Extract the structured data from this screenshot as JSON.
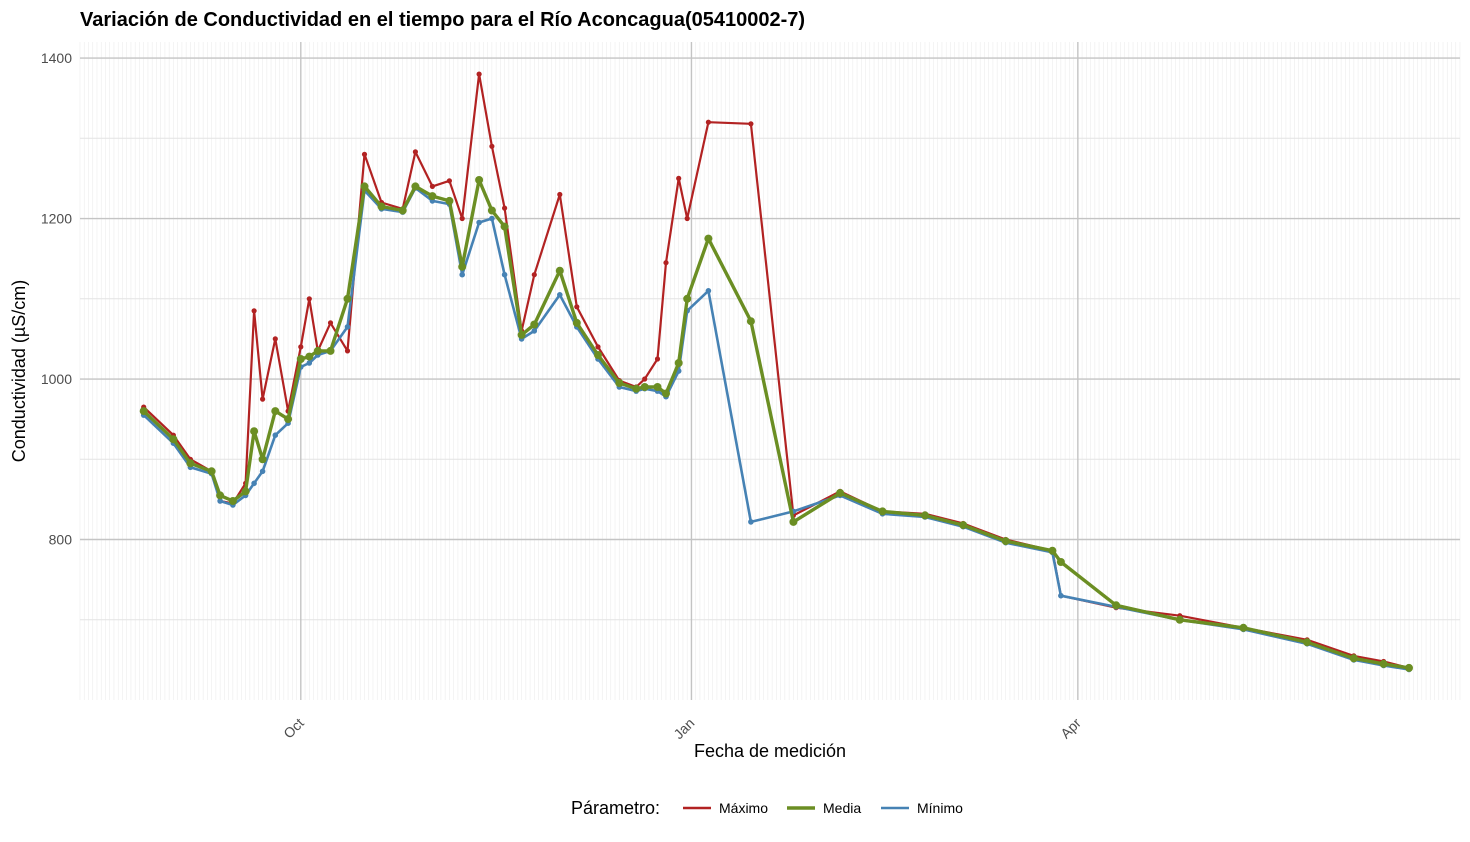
{
  "chart_data": {
    "type": "line",
    "title": "Variación de Conductividad en el tiempo para el Río Aconcagua(05410002-7)",
    "xlabel": "Fecha de medición",
    "ylabel": "Conductividad (µS/cm)",
    "x_ticks": [
      {
        "label": "Oct",
        "date": "2023-10-01"
      },
      {
        "label": "Jan",
        "date": "2024-01-01"
      },
      {
        "label": "Apr",
        "date": "2024-04-01"
      }
    ],
    "y_ticks": [
      800,
      1000,
      1200,
      1400
    ],
    "xlim": [
      "2023-08-10",
      "2024-06-30"
    ],
    "ylim": [
      600,
      1420
    ],
    "grid": true,
    "legend": {
      "title": "Párametro:",
      "position": "bottom",
      "entries": [
        {
          "name": "Máximo",
          "color": "#B22222"
        },
        {
          "name": "Media",
          "color": "#6B8E23"
        },
        {
          "name": "Mínimo",
          "color": "#4682B4"
        }
      ]
    },
    "x": [
      "2023-08-25",
      "2023-09-01",
      "2023-09-05",
      "2023-09-10",
      "2023-09-12",
      "2023-09-15",
      "2023-09-18",
      "2023-09-20",
      "2023-09-22",
      "2023-09-25",
      "2023-09-28",
      "2023-10-01",
      "2023-10-03",
      "2023-10-05",
      "2023-10-08",
      "2023-10-12",
      "2023-10-16",
      "2023-10-20",
      "2023-10-25",
      "2023-10-28",
      "2023-11-01",
      "2023-11-05",
      "2023-11-08",
      "2023-11-12",
      "2023-11-15",
      "2023-11-18",
      "2023-11-22",
      "2023-11-25",
      "2023-12-01",
      "2023-12-05",
      "2023-12-10",
      "2023-12-15",
      "2023-12-19",
      "2023-12-21",
      "2023-12-24",
      "2023-12-26",
      "2023-12-29",
      "2023-12-31",
      "2024-01-05",
      "2024-01-15",
      "2024-01-25",
      "2024-02-05",
      "2024-02-15",
      "2024-02-25",
      "2024-03-05",
      "2024-03-15",
      "2024-03-26",
      "2024-03-28",
      "2024-04-10",
      "2024-04-25",
      "2024-05-10",
      "2024-05-25",
      "2024-06-05",
      "2024-06-12",
      "2024-06-18"
    ],
    "series": [
      {
        "name": "Máximo",
        "color": "#B22222",
        "values": [
          965,
          930,
          900,
          885,
          848,
          845,
          870,
          1085,
          975,
          1050,
          960,
          1040,
          1100,
          1035,
          1070,
          1035,
          1280,
          1220,
          1212,
          1283,
          1240,
          1247,
          1200,
          1380,
          1290,
          1213,
          1060,
          1130,
          1230,
          1090,
          1040,
          998,
          990,
          1000,
          1025,
          1145,
          1250,
          1200,
          1320,
          1318,
          830,
          860,
          835,
          832,
          820,
          800,
          786,
          730,
          715,
          705,
          690,
          675,
          655,
          648,
          640
        ]
      },
      {
        "name": "Media",
        "color": "#6B8E23",
        "values": [
          960,
          925,
          895,
          885,
          855,
          848,
          860,
          935,
          900,
          960,
          950,
          1025,
          1028,
          1035,
          1035,
          1100,
          1240,
          1215,
          1210,
          1240,
          1228,
          1222,
          1140,
          1248,
          1210,
          1190,
          1055,
          1068,
          1135,
          1070,
          1030,
          995,
          988,
          990,
          990,
          982,
          1020,
          1100,
          1175,
          1072,
          822,
          858,
          835,
          830,
          818,
          798,
          786,
          772,
          718,
          700,
          690,
          672,
          652,
          645,
          640
        ]
      },
      {
        "name": "Mínimo",
        "color": "#4682B4",
        "values": [
          955,
          920,
          890,
          882,
          848,
          843,
          855,
          870,
          885,
          930,
          945,
          1015,
          1020,
          1030,
          1035,
          1065,
          1235,
          1212,
          1208,
          1238,
          1222,
          1218,
          1130,
          1195,
          1200,
          1130,
          1050,
          1060,
          1105,
          1065,
          1025,
          990,
          985,
          988,
          985,
          978,
          1010,
          1085,
          1110,
          822,
          835,
          855,
          832,
          828,
          816,
          796,
          784,
          730,
          716,
          700,
          688,
          670,
          650,
          643,
          638
        ]
      }
    ]
  }
}
